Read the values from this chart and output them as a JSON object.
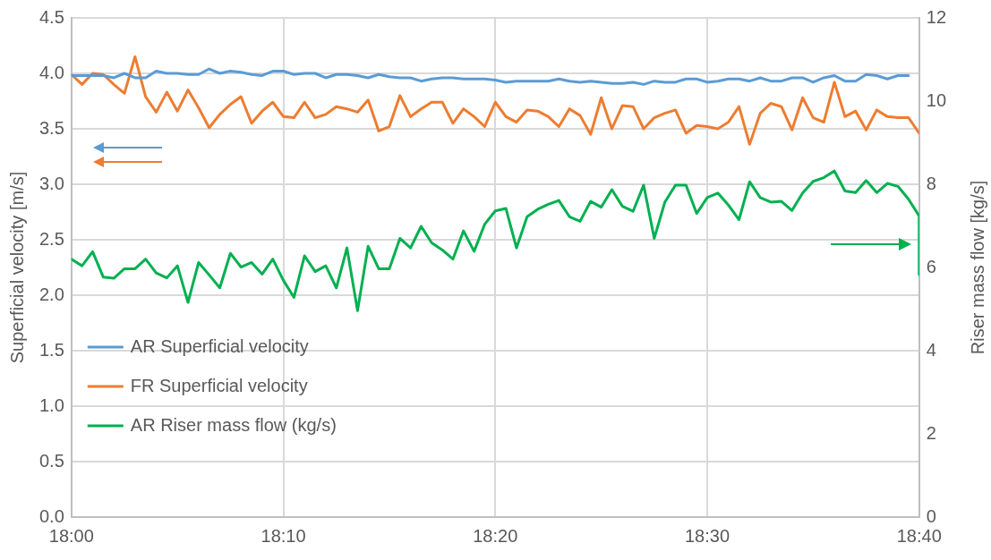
{
  "chart_data": {
    "type": "line",
    "xlabel": null,
    "ylabel": "Superficial velocity [m/s]",
    "y2label": "Riser mass flow [kg/s]",
    "x": [
      18,
      18.00833,
      18.01667,
      18.025,
      18.03333,
      18.04167,
      18.05,
      18.05833,
      18.06667,
      18.075,
      18.08333,
      18.09167,
      18.1,
      18.10833,
      18.11667,
      18.125,
      18.13333,
      18.14167,
      18.15,
      18.15833,
      18.16667,
      18.175,
      18.18333,
      18.19167,
      18.2,
      18.20833,
      18.21667,
      18.225,
      18.23333,
      18.24167,
      18.25,
      18.25833,
      18.26667,
      18.275,
      18.28333,
      18.29167,
      18.3,
      18.30833,
      18.31667,
      18.325,
      18.33333,
      18.34167,
      18.35,
      18.35833,
      18.36667,
      18.375,
      18.38333,
      18.39167,
      18.4,
      18.40833,
      18.41667,
      18.425,
      18.43333,
      18.44167,
      18.45,
      18.45833,
      18.46667,
      18.475,
      18.48333,
      18.49167,
      18.5,
      18.50833,
      18.51667,
      18.525,
      18.53333,
      18.54167,
      18.55,
      18.55833,
      18.56667,
      18.575,
      18.58333,
      18.59167,
      18.6,
      18.60833,
      18.61667,
      18.625,
      18.63333,
      18.64167,
      18.65,
      18.65833,
      18.66667
    ],
    "series": [
      {
        "name": "AR Superficial velocity",
        "color": "#5b9bd5",
        "values": [
          3.98,
          3.98,
          3.98,
          3.98,
          3.96,
          4.0,
          3.96,
          3.96,
          4.02,
          4.0,
          4.0,
          3.99,
          3.99,
          4.04,
          4.0,
          4.02,
          4.01,
          3.99,
          3.98,
          4.02,
          4.02,
          3.99,
          4.0,
          4.0,
          3.96,
          3.99,
          3.99,
          3.98,
          3.96,
          3.99,
          3.97,
          3.96,
          3.96,
          3.93,
          3.95,
          3.96,
          3.96,
          3.95,
          3.95,
          3.95,
          3.94,
          3.92,
          3.93,
          3.93,
          3.93,
          3.93,
          3.95,
          3.93,
          3.92,
          3.93,
          3.92,
          3.91,
          3.91,
          3.92,
          3.9,
          3.93,
          3.92,
          3.92,
          3.95,
          3.95,
          3.92,
          3.93,
          3.95,
          3.95,
          3.93,
          3.96,
          3.93,
          3.93,
          3.96,
          3.96,
          3.92,
          3.96,
          3.98,
          3.93,
          3.93,
          3.99,
          3.98,
          3.95,
          3.98,
          3.98,
          null
        ]
      },
      {
        "name": "FR Superficial velocity",
        "color": "#ed7d31",
        "values": [
          3.99,
          3.9,
          4.0,
          3.99,
          3.9,
          3.82,
          4.15,
          3.79,
          3.65,
          3.83,
          3.66,
          3.85,
          3.69,
          3.51,
          3.63,
          3.72,
          3.79,
          3.55,
          3.66,
          3.74,
          3.61,
          3.6,
          3.74,
          3.6,
          3.63,
          3.7,
          3.68,
          3.65,
          3.76,
          3.48,
          3.52,
          3.8,
          3.61,
          3.68,
          3.74,
          3.74,
          3.55,
          3.68,
          3.61,
          3.52,
          3.74,
          3.61,
          3.56,
          3.67,
          3.66,
          3.61,
          3.52,
          3.68,
          3.62,
          3.45,
          3.78,
          3.5,
          3.71,
          3.7,
          3.5,
          3.6,
          3.64,
          3.67,
          3.46,
          3.53,
          3.52,
          3.5,
          3.56,
          3.7,
          3.36,
          3.64,
          3.73,
          3.7,
          3.49,
          3.78,
          3.6,
          3.56,
          3.92,
          3.61,
          3.66,
          3.49,
          3.67,
          3.61,
          3.6,
          3.6,
          3.46
        ]
      },
      {
        "name": "AR Riser mass flow (kg/s)",
        "color": "#00b050",
        "axis": "y2",
        "x": [
          18,
          18.00833,
          18.01667,
          18.025,
          18.03333,
          18.04167,
          18.05,
          18.05833,
          18.06667,
          18.075,
          18.08333,
          18.09167,
          18.1,
          18.10833,
          18.11667,
          18.125,
          18.13333,
          18.14167,
          18.15,
          18.15833,
          18.16667,
          18.175,
          18.18333,
          18.19167,
          18.2,
          18.20833,
          18.21667,
          18.225,
          18.23333,
          18.24167,
          18.25,
          18.25833,
          18.26667,
          18.275,
          18.28333,
          18.29167,
          18.3,
          18.30833,
          18.31667,
          18.325,
          18.33333,
          18.34167,
          18.35,
          18.35833,
          18.36667,
          18.375,
          18.38333,
          18.39167,
          18.4,
          18.40833,
          18.41667,
          18.425,
          18.43333,
          18.44167,
          18.45,
          18.45833,
          18.46667,
          18.475,
          18.48333,
          18.49167,
          18.5,
          18.50833,
          18.51667,
          18.525,
          18.53333,
          18.54167,
          18.55,
          18.55833,
          18.56667,
          18.575,
          18.58333,
          18.59167,
          18.6,
          18.60833,
          18.61667,
          18.625,
          18.63333,
          18.64167,
          18.65,
          18.65833,
          18.66667,
          18.66667
        ],
        "values": [
          6.2,
          6.04,
          6.38,
          5.77,
          5.74,
          5.97,
          5.97,
          6.2,
          5.87,
          5.75,
          6.04,
          5.16,
          6.12,
          5.82,
          5.51,
          6.34,
          6.01,
          6.12,
          5.84,
          6.2,
          5.69,
          5.28,
          6.28,
          5.9,
          6.04,
          5.51,
          6.47,
          4.96,
          6.51,
          5.97,
          5.97,
          6.7,
          6.47,
          6.99,
          6.59,
          6.42,
          6.2,
          6.88,
          6.39,
          7.04,
          7.36,
          7.42,
          6.47,
          7.22,
          7.4,
          7.52,
          7.61,
          7.22,
          7.11,
          7.59,
          7.45,
          7.87,
          7.47,
          7.35,
          7.98,
          6.7,
          7.57,
          7.98,
          7.98,
          7.3,
          7.68,
          7.79,
          7.5,
          7.15,
          8.06,
          7.68,
          7.57,
          7.59,
          7.37,
          7.79,
          8.07,
          8.16,
          8.32,
          7.84,
          7.8,
          8.09,
          7.8,
          8.02,
          7.95,
          7.64,
          7.24,
          5.83
        ]
      }
    ],
    "xlim": [
      18,
      18.66667
    ],
    "xticks": [
      {
        "value": 18,
        "label": "18:00"
      },
      {
        "value": 18.16667,
        "label": "18:10"
      },
      {
        "value": 18.33333,
        "label": "18:20"
      },
      {
        "value": 18.5,
        "label": "18:30"
      },
      {
        "value": 18.66667,
        "label": "18:40"
      }
    ],
    "ylim": [
      0,
      4.5
    ],
    "yticks": [
      {
        "value": 0,
        "label": "0.0"
      },
      0.5,
      {
        "value": 1,
        "label": "1.0"
      },
      1.5,
      {
        "value": 2,
        "label": "2.0"
      },
      2.5,
      {
        "value": 3,
        "label": "3.0"
      },
      3.5,
      {
        "value": 4,
        "label": "4.0"
      },
      4.5
    ],
    "y2lim": [
      0,
      12
    ],
    "y2ticks": [
      0,
      2,
      4,
      6,
      8,
      10,
      12
    ],
    "grid": true,
    "legend": "bottom left",
    "marker": "none",
    "line_style": "solid"
  }
}
